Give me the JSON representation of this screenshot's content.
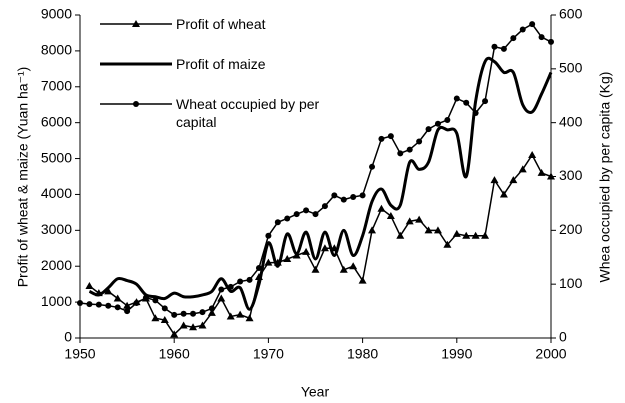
{
  "chart_data": {
    "type": "line",
    "xlabel": "Year",
    "ylabel": "Profit of wheat & maize (Yuan ha⁻¹)",
    "y2label": "Whea occupied by per capita (Kg)",
    "xlim": [
      1950,
      2000
    ],
    "xticks": [
      1950,
      1960,
      1970,
      1980,
      1990,
      2000
    ],
    "ylim": [
      0,
      9000
    ],
    "yticks": [
      0,
      1000,
      2000,
      3000,
      4000,
      5000,
      6000,
      7000,
      8000,
      9000
    ],
    "y2lim": [
      0,
      600
    ],
    "y2ticks": [
      0,
      100,
      200,
      300,
      400,
      500,
      600
    ],
    "series": [
      {
        "name": "Profit of wheat",
        "color": "#000000",
        "marker": "triangle",
        "axis": "y",
        "x": [
          1951,
          1952,
          1953,
          1954,
          1955,
          1956,
          1957,
          1958,
          1959,
          1960,
          1961,
          1962,
          1963,
          1964,
          1965,
          1966,
          1967,
          1968,
          1969,
          1970,
          1971,
          1972,
          1973,
          1974,
          1975,
          1976,
          1977,
          1978,
          1979,
          1980,
          1981,
          1982,
          1983,
          1984,
          1985,
          1986,
          1987,
          1988,
          1989,
          1990,
          1991,
          1992,
          1993,
          1994,
          1995,
          1996,
          1997,
          1998,
          1999,
          2000
        ],
        "values": [
          1450,
          1250,
          1300,
          1100,
          900,
          1000,
          1100,
          550,
          500,
          100,
          350,
          300,
          350,
          700,
          1100,
          600,
          650,
          550,
          1700,
          2100,
          2100,
          2200,
          2300,
          2400,
          1900,
          2500,
          2500,
          1900,
          2000,
          1600,
          3000,
          3600,
          3400,
          2850,
          3250,
          3300,
          3000,
          3000,
          2600,
          2900,
          2850,
          2850,
          2850,
          4400,
          4000,
          4400,
          4700,
          5100,
          4600,
          4500
        ]
      },
      {
        "name": "Profit of maize",
        "color": "#000000",
        "marker": "none",
        "axis": "y",
        "x": [
          1951,
          1952,
          1953,
          1954,
          1955,
          1956,
          1957,
          1958,
          1959,
          1960,
          1961,
          1962,
          1963,
          1964,
          1965,
          1966,
          1967,
          1968,
          1969,
          1970,
          1971,
          1972,
          1973,
          1974,
          1975,
          1976,
          1977,
          1978,
          1979,
          1980,
          1981,
          1982,
          1983,
          1984,
          1985,
          1986,
          1987,
          1988,
          1989,
          1990,
          1991,
          1992,
          1993,
          1994,
          1995,
          1996,
          1997,
          1998,
          1999,
          2000
        ],
        "values": [
          1300,
          1200,
          1400,
          1650,
          1600,
          1500,
          1200,
          1150,
          1100,
          1250,
          1150,
          1150,
          1200,
          1300,
          1650,
          1300,
          1400,
          800,
          1500,
          2650,
          2000,
          2900,
          2350,
          2950,
          2200,
          2950,
          2300,
          3000,
          2300,
          2850,
          3800,
          4150,
          3700,
          3700,
          4900,
          4700,
          4900,
          5800,
          5800,
          5700,
          4500,
          6600,
          7700,
          7700,
          7400,
          7400,
          6500,
          6300,
          6800,
          7400
        ]
      },
      {
        "name": "Wheat occupied by per capital",
        "color": "#000000",
        "marker": "circle",
        "axis": "y2",
        "x": [
          1950,
          1951,
          1952,
          1953,
          1954,
          1955,
          1956,
          1957,
          1958,
          1959,
          1960,
          1961,
          1962,
          1963,
          1964,
          1965,
          1966,
          1967,
          1968,
          1969,
          1970,
          1971,
          1972,
          1973,
          1974,
          1975,
          1976,
          1977,
          1978,
          1979,
          1980,
          1981,
          1982,
          1983,
          1984,
          1985,
          1986,
          1987,
          1988,
          1989,
          1990,
          1991,
          1992,
          1993,
          1994,
          1995,
          1996,
          1997,
          1998,
          1999,
          2000
        ],
        "values": [
          65,
          63,
          62,
          60,
          57,
          50,
          65,
          75,
          70,
          55,
          43,
          45,
          45,
          48,
          55,
          90,
          95,
          105,
          108,
          130,
          190,
          215,
          222,
          230,
          237,
          230,
          245,
          265,
          257,
          262,
          265,
          318,
          370,
          375,
          343,
          350,
          365,
          388,
          398,
          405,
          445,
          437,
          418,
          440,
          541,
          537,
          557,
          573,
          583,
          559,
          550
        ]
      }
    ]
  }
}
